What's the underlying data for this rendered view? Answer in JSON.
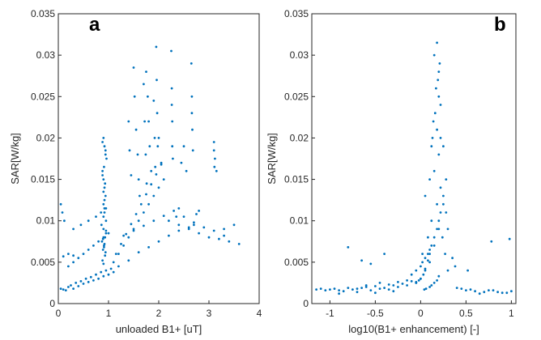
{
  "chart_data": [
    {
      "type": "scatter",
      "panel_label": "a",
      "xlabel": "unloaded B1+ [uT]",
      "ylabel": "SAR[W/kg]",
      "xlim": [
        0,
        4
      ],
      "ylim": [
        0,
        0.035
      ],
      "xticks": [
        "0",
        "1",
        "2",
        "3",
        "4"
      ],
      "yticks": [
        "0",
        "0.005",
        "0.01",
        "0.015",
        "0.02",
        "0.025",
        "0.03",
        "0.035"
      ],
      "grid": false,
      "marker_color": "#0072BD",
      "points_x": [
        0.05,
        0.1,
        0.15,
        0.2,
        0.25,
        0.3,
        0.35,
        0.4,
        0.45,
        0.5,
        0.55,
        0.6,
        0.65,
        0.7,
        0.75,
        0.8,
        0.85,
        0.9,
        0.95,
        1.0,
        1.05,
        1.1,
        0.2,
        0.3,
        0.4,
        0.5,
        0.6,
        0.7,
        0.8,
        0.9,
        1.0,
        0.3,
        0.45,
        0.6,
        0.75,
        0.85,
        0.95,
        0.1,
        0.2,
        0.3,
        0.05,
        0.08,
        0.12,
        0.88,
        0.9,
        0.92,
        0.94,
        0.96,
        0.88,
        0.9,
        0.92,
        0.94,
        0.9,
        0.92,
        0.95,
        0.9,
        0.93,
        0.91,
        0.89,
        0.95,
        0.87,
        0.92,
        0.9,
        0.93,
        0.88,
        0.91,
        0.94,
        0.9,
        0.86,
        0.92,
        0.95,
        0.89,
        0.91,
        0.93,
        0.9,
        0.88,
        0.94,
        0.92,
        1.1,
        1.2,
        1.3,
        1.4,
        1.5,
        1.6,
        1.7,
        1.8,
        1.9,
        2.0,
        1.15,
        1.25,
        1.35,
        1.45,
        1.55,
        1.65,
        1.75,
        1.85,
        1.95,
        2.05,
        2.2,
        2.4,
        2.6,
        2.8,
        3.0,
        3.2,
        3.4,
        3.6,
        1.3,
        1.5,
        1.7,
        1.9,
        2.1,
        2.3,
        2.5,
        2.7,
        2.9,
        3.1,
        3.3,
        1.2,
        1.4,
        1.6,
        1.8,
        2.0,
        2.2,
        2.4,
        2.6,
        1.75,
        1.78,
        1.8,
        1.82,
        1.85,
        1.95,
        1.96,
        1.97,
        1.98,
        2.25,
        2.26,
        2.27,
        2.28,
        2.65,
        2.66,
        2.67,
        3.1,
        3.12,
        3.15,
        1.5,
        1.52,
        1.55,
        1.58,
        1.6,
        1.62,
        2.0,
        2.05,
        2.1,
        2.5,
        2.55,
        2.45,
        1.9,
        1.92,
        1.93,
        2.26,
        2.27,
        2.66,
        2.68,
        3.1,
        3.11,
        1.7,
        1.72,
        1.74,
        1.76,
        1.4,
        1.42,
        1.45,
        2.35,
        2.4,
        2.7,
        2.75,
        2.8,
        3.3,
        3.5
      ],
      "points_y": [
        0.0018,
        0.0017,
        0.0016,
        0.002,
        0.0022,
        0.0018,
        0.0025,
        0.0021,
        0.0027,
        0.0024,
        0.003,
        0.0026,
        0.0032,
        0.0028,
        0.0035,
        0.003,
        0.0038,
        0.0033,
        0.004,
        0.0035,
        0.0042,
        0.0038,
        0.0045,
        0.005,
        0.0055,
        0.006,
        0.0065,
        0.007,
        0.0075,
        0.008,
        0.0085,
        0.009,
        0.0095,
        0.01,
        0.0105,
        0.011,
        0.0115,
        0.0057,
        0.006,
        0.0058,
        0.012,
        0.011,
        0.01,
        0.0195,
        0.02,
        0.019,
        0.018,
        0.0175,
        0.016,
        0.015,
        0.014,
        0.013,
        0.012,
        0.011,
        0.01,
        0.009,
        0.008,
        0.007,
        0.0065,
        0.0085,
        0.0075,
        0.0125,
        0.0135,
        0.0145,
        0.0155,
        0.0165,
        0.0185,
        0.0105,
        0.0095,
        0.0115,
        0.0088,
        0.0078,
        0.0068,
        0.0058,
        0.0048,
        0.0052,
        0.0062,
        0.0072,
        0.005,
        0.006,
        0.007,
        0.008,
        0.009,
        0.01,
        0.011,
        0.012,
        0.013,
        0.014,
        0.006,
        0.0072,
        0.0084,
        0.0096,
        0.0108,
        0.012,
        0.0132,
        0.0144,
        0.0156,
        0.0168,
        0.01,
        0.0095,
        0.009,
        0.0085,
        0.008,
        0.0078,
        0.0075,
        0.0072,
        0.0082,
        0.0088,
        0.0094,
        0.01,
        0.0106,
        0.0112,
        0.0105,
        0.0098,
        0.0092,
        0.0088,
        0.0082,
        0.0045,
        0.0052,
        0.0062,
        0.0068,
        0.0075,
        0.0082,
        0.0088,
        0.0092,
        0.028,
        0.025,
        0.022,
        0.019,
        0.016,
        0.031,
        0.027,
        0.023,
        0.019,
        0.0305,
        0.026,
        0.022,
        0.0175,
        0.029,
        0.025,
        0.021,
        0.0195,
        0.0175,
        0.016,
        0.0285,
        0.025,
        0.021,
        0.018,
        0.015,
        0.013,
        0.02,
        0.017,
        0.015,
        0.019,
        0.016,
        0.017,
        0.0245,
        0.02,
        0.0165,
        0.024,
        0.019,
        0.023,
        0.0185,
        0.0185,
        0.0165,
        0.0265,
        0.022,
        0.018,
        0.0145,
        0.022,
        0.0185,
        0.0155,
        0.0105,
        0.0115,
        0.0095,
        0.0108,
        0.0112,
        0.009,
        0.0095
      ]
    },
    {
      "type": "scatter",
      "panel_label": "b",
      "xlabel": "log10(B1+ enhancement) [-]",
      "ylabel": "SAR[W/kg]",
      "xlim": [
        -1.2,
        1.05
      ],
      "ylim": [
        0,
        0.035
      ],
      "xticks": [
        "-1",
        "-0.5",
        "0",
        "0.5",
        "1"
      ],
      "yticks": [
        "0",
        "0.005",
        "0.01",
        "0.015",
        "0.02",
        "0.025",
        "0.03",
        "0.035"
      ],
      "grid": false,
      "marker_color": "#0072BD",
      "points_x": [
        -1.15,
        -1.05,
        -0.95,
        -0.85,
        -0.75,
        -0.65,
        -0.55,
        -0.45,
        -0.35,
        -0.25,
        -0.15,
        -0.05,
        -1.1,
        -1.0,
        -0.9,
        -0.8,
        -0.7,
        -0.6,
        -0.5,
        -0.4,
        -0.3,
        -0.2,
        -0.1,
        -0.9,
        -0.7,
        -0.5,
        -0.3,
        -0.6,
        -0.45,
        -0.35,
        -0.25,
        -0.15,
        -0.1,
        -0.05,
        0.0,
        0.02,
        0.05,
        0.08,
        0.1,
        0.12,
        0.15,
        0.18,
        0.2,
        0.22,
        0.25,
        0.28,
        0.3,
        0.0,
        0.05,
        0.1,
        0.15,
        0.2,
        0.25,
        -0.05,
        0.02,
        0.08,
        0.12,
        0.18,
        0.22,
        0.05,
        0.1,
        0.15,
        0.2,
        0.12,
        0.18,
        0.22,
        0.16,
        0.2,
        0.14,
        0.19,
        0.21,
        0.17,
        0.13,
        0.15,
        0.18,
        0.2,
        0.22,
        0.25,
        0.28,
        0.1,
        0.08,
        0.05,
        0.03,
        0.0,
        -0.02,
        -0.05,
        0.24,
        0.27,
        0.3,
        0.2,
        0.18,
        0.15,
        0.12,
        0.1,
        0.06,
        0.04,
        0.4,
        0.5,
        0.6,
        0.7,
        0.8,
        0.9,
        1.0,
        0.45,
        0.55,
        0.65,
        0.75,
        0.85,
        0.95,
        0.52,
        0.78,
        0.98,
        -0.8,
        -0.65,
        -0.55,
        -0.4,
        0.35,
        0.38
      ],
      "points_y": [
        0.0017,
        0.0016,
        0.0018,
        0.0015,
        0.0017,
        0.0019,
        0.0016,
        0.0018,
        0.0017,
        0.002,
        0.0022,
        0.0025,
        0.0018,
        0.0017,
        0.0016,
        0.0019,
        0.0018,
        0.002,
        0.0021,
        0.0019,
        0.0022,
        0.0024,
        0.0027,
        0.0012,
        0.0014,
        0.0013,
        0.0015,
        0.0022,
        0.0025,
        0.0023,
        0.0026,
        0.0028,
        0.0035,
        0.004,
        0.0045,
        0.005,
        0.0055,
        0.006,
        0.0065,
        0.007,
        0.008,
        0.009,
        0.01,
        0.011,
        0.012,
        0.011,
        0.009,
        0.003,
        0.004,
        0.005,
        0.007,
        0.009,
        0.013,
        0.0025,
        0.006,
        0.008,
        0.01,
        0.012,
        0.014,
        0.013,
        0.015,
        0.016,
        0.018,
        0.019,
        0.021,
        0.02,
        0.023,
        0.025,
        0.022,
        0.027,
        0.029,
        0.026,
        0.02,
        0.03,
        0.0315,
        0.028,
        0.024,
        0.019,
        0.015,
        0.006,
        0.0052,
        0.0042,
        0.0035,
        0.003,
        0.0028,
        0.0026,
        0.008,
        0.006,
        0.004,
        0.0033,
        0.0028,
        0.0025,
        0.0022,
        0.002,
        0.0018,
        0.0017,
        0.0019,
        0.0016,
        0.0015,
        0.0014,
        0.0016,
        0.0013,
        0.0015,
        0.0018,
        0.0017,
        0.0012,
        0.0016,
        0.0014,
        0.0013,
        0.004,
        0.0075,
        0.0078,
        0.0068,
        0.0052,
        0.0048,
        0.006,
        0.0055,
        0.0045
      ]
    }
  ]
}
